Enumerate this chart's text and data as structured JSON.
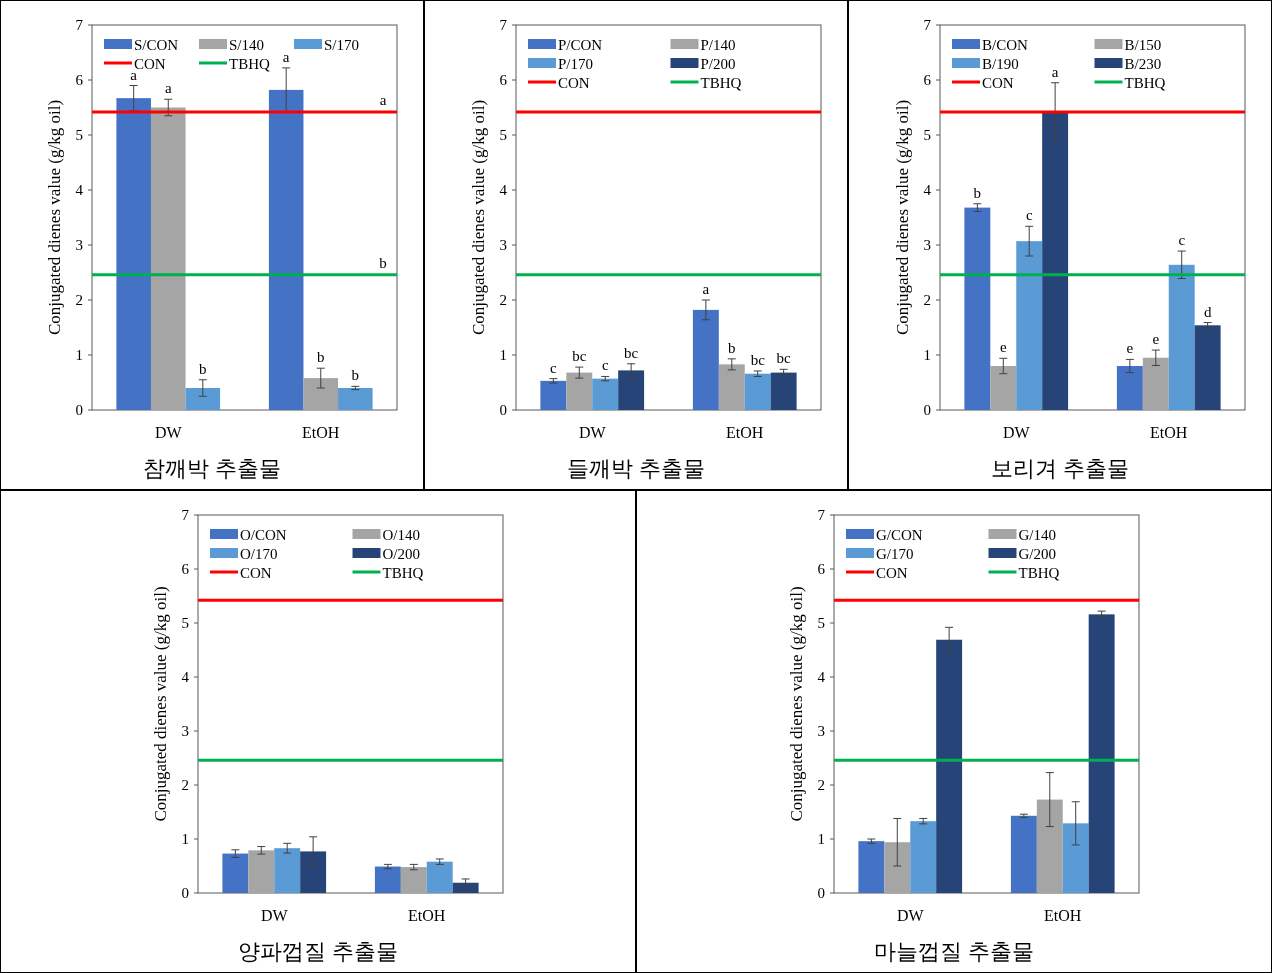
{
  "chart_data": [
    {
      "type": "bar",
      "title": "참깨박 추출물",
      "ylabel": "Conjugated dienes value (g/kg oil)",
      "categories": [
        "DW",
        "EtOH"
      ],
      "ylim": [
        0,
        7
      ],
      "yticks": [
        0,
        1,
        2,
        3,
        4,
        5,
        6,
        7
      ],
      "legend": "top",
      "series": [
        {
          "name": "S/CON",
          "color": "#4472c4",
          "values": [
            5.67,
            5.82
          ],
          "errors": [
            0.23,
            0.4
          ],
          "value_labels": [
            "a",
            "a"
          ]
        },
        {
          "name": "S/140",
          "color": "#a5a5a5",
          "values": [
            5.5,
            0.58
          ],
          "errors": [
            0.15,
            0.18
          ],
          "value_labels": [
            "a",
            "b"
          ]
        },
        {
          "name": "S/170",
          "color": "#5b9bd5",
          "values": [
            0.4,
            0.4
          ],
          "errors": [
            0.15,
            0.03
          ],
          "value_labels": [
            "b",
            "b"
          ]
        }
      ],
      "ref_lines": [
        {
          "axis": "y",
          "value": 5.42,
          "label": "CON",
          "color": "#ff0000"
        },
        {
          "axis": "y",
          "value": 2.46,
          "label": "TBHQ",
          "color": "#00b050"
        }
      ],
      "annotations": [
        {
          "text": "a",
          "y": 5.42
        },
        {
          "text": "b",
          "y": 2.46
        }
      ]
    },
    {
      "type": "bar",
      "title": "들깨박 추출물",
      "ylabel": "Conjugated dienes value (g/kg oil)",
      "categories": [
        "DW",
        "EtOH"
      ],
      "ylim": [
        0,
        7
      ],
      "yticks": [
        0,
        1,
        2,
        3,
        4,
        5,
        6,
        7
      ],
      "legend": "top",
      "series": [
        {
          "name": "P/CON",
          "color": "#4472c4",
          "values": [
            0.53,
            1.82
          ],
          "errors": [
            0.04,
            0.18
          ],
          "value_labels": [
            "c",
            "a"
          ]
        },
        {
          "name": "P/140",
          "color": "#a5a5a5",
          "values": [
            0.68,
            0.83
          ],
          "errors": [
            0.1,
            0.1
          ],
          "value_labels": [
            "bc",
            "b"
          ]
        },
        {
          "name": "P/170",
          "color": "#5b9bd5",
          "values": [
            0.57,
            0.66
          ],
          "errors": [
            0.04,
            0.05
          ],
          "value_labels": [
            "c",
            "bc"
          ]
        },
        {
          "name": "P/200",
          "color": "#264478",
          "values": [
            0.72,
            0.68
          ],
          "errors": [
            0.12,
            0.06
          ],
          "value_labels": [
            "bc",
            "bc"
          ]
        }
      ],
      "ref_lines": [
        {
          "axis": "y",
          "value": 5.42,
          "label": "CON",
          "color": "#ff0000"
        },
        {
          "axis": "y",
          "value": 2.46,
          "label": "TBHQ",
          "color": "#00b050"
        }
      ]
    },
    {
      "type": "bar",
      "title": "보리겨 추출물",
      "ylabel": "Conjugated dienes value (g/kg oil)",
      "categories": [
        "DW",
        "EtOH"
      ],
      "ylim": [
        0,
        7
      ],
      "yticks": [
        0,
        1,
        2,
        3,
        4,
        5,
        6,
        7
      ],
      "legend": "top",
      "series": [
        {
          "name": "B/CON",
          "color": "#4472c4",
          "values": [
            3.68,
            0.8
          ],
          "errors": [
            0.07,
            0.12
          ],
          "value_labels": [
            "b",
            "e"
          ]
        },
        {
          "name": "B/150",
          "color": "#a5a5a5",
          "values": [
            0.8,
            0.95
          ],
          "errors": [
            0.14,
            0.14
          ],
          "value_labels": [
            "e",
            "e"
          ]
        },
        {
          "name": "B/190",
          "color": "#5b9bd5",
          "values": [
            3.07,
            2.64
          ],
          "errors": [
            0.27,
            0.25
          ],
          "value_labels": [
            "c",
            "c"
          ]
        },
        {
          "name": "B/230",
          "color": "#264478",
          "values": [
            5.4,
            1.54
          ],
          "errors": [
            0.55,
            0.05
          ],
          "value_labels": [
            "a",
            "d"
          ]
        }
      ],
      "ref_lines": [
        {
          "axis": "y",
          "value": 5.42,
          "label": "CON",
          "color": "#ff0000"
        },
        {
          "axis": "y",
          "value": 2.46,
          "label": "TBHQ",
          "color": "#00b050"
        }
      ]
    },
    {
      "type": "bar",
      "title": "양파껍질 추출물",
      "ylabel": "Conjugated dienes value (g/kg oil)",
      "categories": [
        "DW",
        "EtOH"
      ],
      "ylim": [
        0,
        7
      ],
      "yticks": [
        0,
        1,
        2,
        3,
        4,
        5,
        6,
        7
      ],
      "legend": "top",
      "series": [
        {
          "name": "O/CON",
          "color": "#4472c4",
          "values": [
            0.73,
            0.49
          ],
          "errors": [
            0.07,
            0.04
          ]
        },
        {
          "name": "O/140",
          "color": "#a5a5a5",
          "values": [
            0.79,
            0.48
          ],
          "errors": [
            0.07,
            0.05
          ]
        },
        {
          "name": "O/170",
          "color": "#5b9bd5",
          "values": [
            0.83,
            0.58
          ],
          "errors": [
            0.09,
            0.05
          ]
        },
        {
          "name": "O/200",
          "color": "#264478",
          "values": [
            0.77,
            0.19
          ],
          "errors": [
            0.27,
            0.07
          ]
        }
      ],
      "ref_lines": [
        {
          "axis": "y",
          "value": 5.42,
          "label": "CON",
          "color": "#ff0000"
        },
        {
          "axis": "y",
          "value": 2.46,
          "label": "TBHQ",
          "color": "#00b050"
        }
      ]
    },
    {
      "type": "bar",
      "title": "마늘껍질 추출물",
      "ylabel": "Conjugated dienes value (g/kg oil)",
      "categories": [
        "DW",
        "EtOH"
      ],
      "ylim": [
        0,
        7
      ],
      "yticks": [
        0,
        1,
        2,
        3,
        4,
        5,
        6,
        7
      ],
      "legend": "top",
      "series": [
        {
          "name": "G/CON",
          "color": "#4472c4",
          "values": [
            0.96,
            1.43
          ],
          "errors": [
            0.04,
            0.03
          ]
        },
        {
          "name": "G/140",
          "color": "#a5a5a5",
          "values": [
            0.94,
            1.73
          ],
          "errors": [
            0.44,
            0.5
          ]
        },
        {
          "name": "G/170",
          "color": "#5b9bd5",
          "values": [
            1.33,
            1.29
          ],
          "errors": [
            0.05,
            0.4
          ]
        },
        {
          "name": "G/200",
          "color": "#264478",
          "values": [
            4.69,
            5.16
          ],
          "errors": [
            0.23,
            0.06
          ]
        }
      ],
      "ref_lines": [
        {
          "axis": "y",
          "value": 5.42,
          "label": "CON",
          "color": "#ff0000"
        },
        {
          "axis": "y",
          "value": 2.46,
          "label": "TBHQ",
          "color": "#00b050"
        }
      ]
    }
  ]
}
